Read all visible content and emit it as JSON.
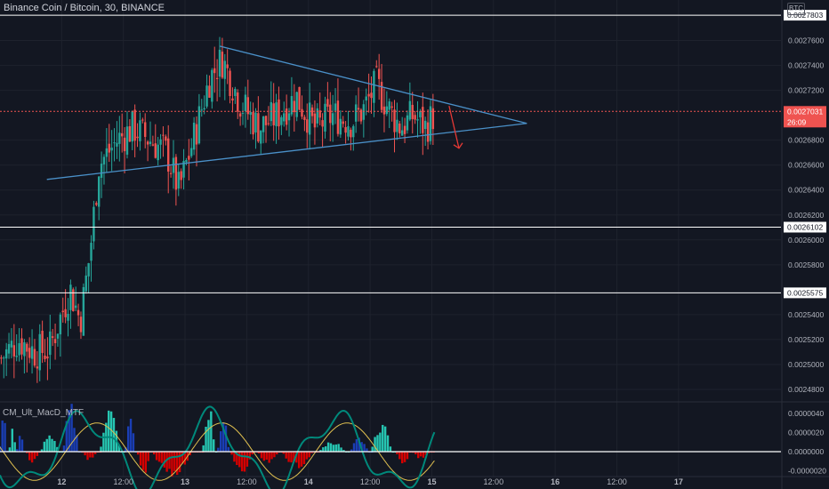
{
  "header": {
    "symbol": "Binance Coin / Bitcoin, 30, BINANCE",
    "currency": "BTC"
  },
  "indicator": {
    "label": "CM_Ult_MacD_MTF"
  },
  "price_axis": {
    "ticks": [
      "0.0027600",
      "0.0027400",
      "0.0027200",
      "0.0026800",
      "0.0026600",
      "0.0026400",
      "0.0026200",
      "0.0026000",
      "0.0025800",
      "0.0025400",
      "0.0025200",
      "0.0025000",
      "0.0024800"
    ],
    "tick_values": [
      0.00276,
      0.00274,
      0.00272,
      0.00268,
      0.00266,
      0.00264,
      0.00262,
      0.0026,
      0.00258,
      0.00254,
      0.00252,
      0.0025,
      0.00248
    ]
  },
  "indicator_axis": {
    "ticks": [
      "0.0000040",
      "0.0000020",
      "0.0000000",
      "-0.0000020"
    ],
    "tick_values": [
      4e-06,
      2e-06,
      0,
      -2e-06
    ]
  },
  "time_axis": {
    "labels": [
      {
        "label": "12",
        "day": 0,
        "bold": true
      },
      {
        "label": "12:00",
        "day": 0.5,
        "bold": false
      },
      {
        "label": "13",
        "day": 1,
        "bold": true
      },
      {
        "label": "12:00",
        "day": 1.5,
        "bold": false
      },
      {
        "label": "14",
        "day": 2,
        "bold": true
      },
      {
        "label": "12:00",
        "day": 2.5,
        "bold": false
      },
      {
        "label": "15",
        "day": 3,
        "bold": true
      },
      {
        "label": "12:00",
        "day": 3.5,
        "bold": false
      },
      {
        "label": "16",
        "day": 4,
        "bold": true
      },
      {
        "label": "12:00",
        "day": 4.5,
        "bold": false
      },
      {
        "label": "17",
        "day": 5,
        "bold": true
      }
    ]
  },
  "levels": [
    {
      "name": "resistance-level",
      "value": 0.0027803,
      "label": "0.0027803"
    },
    {
      "name": "support-level-upper",
      "value": 0.0026102,
      "label": "0.0026102"
    },
    {
      "name": "support-level-lower",
      "value": 0.0025575,
      "label": "0.0025575"
    }
  ],
  "last_price": {
    "label": "0.0027031",
    "value": 0.0027031,
    "countdown": "26:09"
  },
  "colors": {
    "bg": "#131722",
    "up": "#26a69a",
    "down": "#ef5350",
    "triangle": "#4a90c8",
    "arrow": "#e53935",
    "macd_blue": "#1a3eb5",
    "macd_aqua": "#26c6b2",
    "macd_red": "#d50000",
    "macd_line": "#00897b",
    "signal_line": "#e0c050",
    "level": "#ffffff",
    "price_tag": "#ef5350"
  },
  "chart_data": {
    "type": "candlestick",
    "title": "Binance Coin / Bitcoin, 30, BINANCE",
    "interval": "30",
    "ylim": [
      0.00247,
      0.0027925
    ],
    "xlim_days": [
      -0.5,
      5.83
    ],
    "triangle": {
      "upper_line": [
        {
          "day": 1.28,
          "price": 0.0027555
        },
        {
          "day": 3.77,
          "price": 0.0026935
        }
      ],
      "lower_line": [
        {
          "day": -0.12,
          "price": 0.0026485
        },
        {
          "day": 3.77,
          "price": 0.0026935
        }
      ]
    },
    "projection_arrow": [
      {
        "day": 3.14,
        "price": 0.0027075
      },
      {
        "day": 3.22,
        "price": 0.0026735
      }
    ],
    "candles_anchor": [
      {
        "day": -0.49,
        "price": 0.002505
      },
      {
        "day": -0.35,
        "price": 0.00252
      },
      {
        "day": -0.22,
        "price": 0.00251
      },
      {
        "day": -0.1,
        "price": 0.002512
      },
      {
        "day": -0.02,
        "price": 0.002535
      },
      {
        "day": 0.07,
        "price": 0.00256
      },
      {
        "day": 0.15,
        "price": 0.002535
      },
      {
        "day": 0.23,
        "price": 0.00259
      },
      {
        "day": 0.3,
        "price": 0.00266
      },
      {
        "day": 0.45,
        "price": 0.00268
      },
      {
        "day": 0.58,
        "price": 0.00269
      },
      {
        "day": 0.72,
        "price": 0.00268
      },
      {
        "day": 0.85,
        "price": 0.00267
      },
      {
        "day": 0.95,
        "price": 0.00264
      },
      {
        "day": 1.08,
        "price": 0.002685
      },
      {
        "day": 1.2,
        "price": 0.00273
      },
      {
        "day": 1.3,
        "price": 0.002745
      },
      {
        "day": 1.45,
        "price": 0.00271
      },
      {
        "day": 1.6,
        "price": 0.00269
      },
      {
        "day": 1.75,
        "price": 0.0027
      },
      {
        "day": 1.9,
        "price": 0.002715
      },
      {
        "day": 2.05,
        "price": 0.00269
      },
      {
        "day": 2.2,
        "price": 0.0027
      },
      {
        "day": 2.35,
        "price": 0.002695
      },
      {
        "day": 2.45,
        "price": 0.002705
      },
      {
        "day": 2.55,
        "price": 0.002725
      },
      {
        "day": 2.65,
        "price": 0.002705
      },
      {
        "day": 2.75,
        "price": 0.00269
      },
      {
        "day": 2.85,
        "price": 0.0027
      },
      {
        "day": 2.95,
        "price": 0.00269
      },
      {
        "day": 3.03,
        "price": 0.002703
      }
    ]
  }
}
